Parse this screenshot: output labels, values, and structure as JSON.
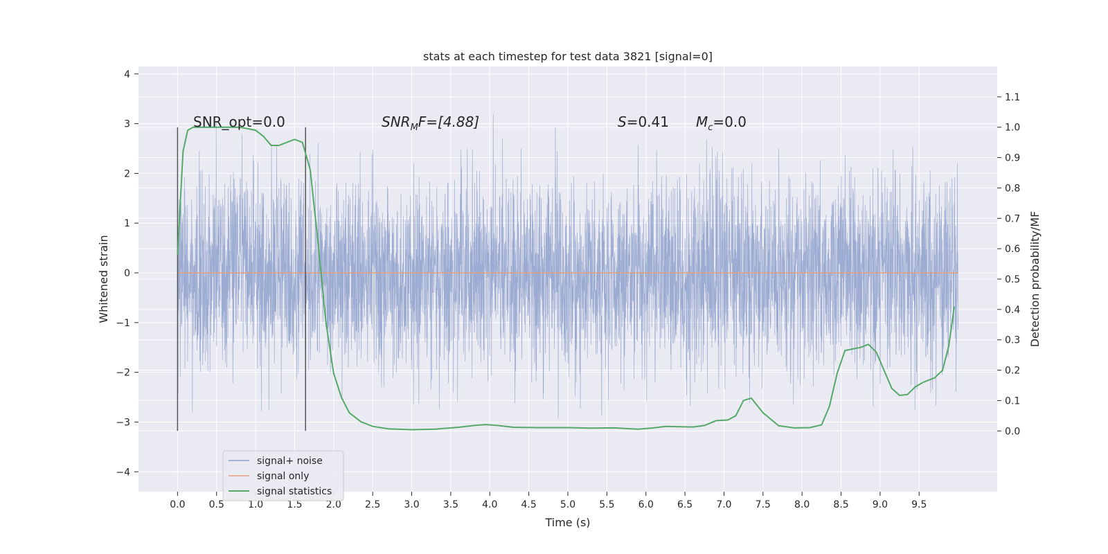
{
  "chart_data": {
    "type": "line",
    "title": "stats at each timestep for test data 3821 [signal=0]",
    "xlabel": "Time (s)",
    "ylabel": "Whitened strain",
    "y2label": "Detection probability/MF",
    "xlim": [
      -0.5,
      10.5
    ],
    "ylim": [
      -4.4,
      4.15
    ],
    "y2lim": [
      -0.2,
      1.2
    ],
    "x_ticks": [
      "0.0",
      "0.5",
      "1.0",
      "1.5",
      "2.0",
      "2.5",
      "3.0",
      "3.5",
      "4.0",
      "4.5",
      "5.0",
      "5.5",
      "6.0",
      "6.5",
      "7.0",
      "7.5",
      "8.0",
      "8.5",
      "9.0",
      "9.5"
    ],
    "y_ticks": [
      "4",
      "3",
      "2",
      "1",
      "0",
      "−1",
      "−2",
      "−3",
      "−4"
    ],
    "y2_ticks": [
      "1.1",
      "1.0",
      "0.9",
      "0.8",
      "0.7",
      "0.6",
      "0.5",
      "0.4",
      "0.3",
      "0.2",
      "0.1",
      "0.0"
    ],
    "grid": true,
    "legend_position": "lower-left",
    "colors": {
      "noise": "#8da0cb",
      "signal": "#e5a07e",
      "stats": "#55a868",
      "background": "#eaeaf2",
      "vline": "#555555"
    },
    "annotations": {
      "snr_opt": "SNR_opt=0.0",
      "snr_mf_prefix": "SNR",
      "snr_mf_sub": "M",
      "snr_mf_suffix": "F=[4.88]",
      "s_var": "S",
      "s_value": "=0.41",
      "mc_var": "M",
      "mc_sub": "c",
      "mc_value": "=0.0"
    },
    "vertical_markers_x": [
      0.0,
      1.64
    ],
    "series": [
      {
        "name": "signal+ noise",
        "x_range": [
          0.0,
          10.0
        ],
        "approx_envelope": [
          -3.3,
          3.8
        ],
        "note_values": "dense noise series ~N(0,1), 4096 samples"
      },
      {
        "name": "signal only",
        "x": [
          0.0,
          10.0
        ],
        "y": [
          0.0,
          0.0
        ]
      },
      {
        "name": "signal statistics",
        "axis": "right",
        "x": [
          0.0,
          0.07,
          0.13,
          0.2,
          0.3,
          0.5,
          0.8,
          1.0,
          1.1,
          1.2,
          1.3,
          1.4,
          1.5,
          1.6,
          1.7,
          1.8,
          1.9,
          2.0,
          2.1,
          2.2,
          2.35,
          2.5,
          2.7,
          3.0,
          3.3,
          3.6,
          3.8,
          3.95,
          4.1,
          4.3,
          4.6,
          5.0,
          5.3,
          5.6,
          5.9,
          6.1,
          6.25,
          6.4,
          6.6,
          6.75,
          6.9,
          7.05,
          7.15,
          7.25,
          7.35,
          7.5,
          7.7,
          7.9,
          8.1,
          8.25,
          8.35,
          8.45,
          8.55,
          8.65,
          8.75,
          8.85,
          8.95,
          9.05,
          9.15,
          9.25,
          9.35,
          9.45,
          9.55,
          9.7,
          9.8,
          9.88,
          9.95
        ],
        "y": [
          0.58,
          0.92,
          0.99,
          1.0,
          1.0,
          1.0,
          1.0,
          0.99,
          0.97,
          0.94,
          0.94,
          0.95,
          0.96,
          0.95,
          0.86,
          0.62,
          0.36,
          0.19,
          0.11,
          0.06,
          0.03,
          0.015,
          0.007,
          0.004,
          0.006,
          0.012,
          0.018,
          0.021,
          0.018,
          0.012,
          0.011,
          0.011,
          0.009,
          0.01,
          0.006,
          0.01,
          0.015,
          0.014,
          0.013,
          0.018,
          0.034,
          0.036,
          0.05,
          0.1,
          0.108,
          0.06,
          0.017,
          0.01,
          0.011,
          0.02,
          0.08,
          0.19,
          0.265,
          0.27,
          0.275,
          0.285,
          0.26,
          0.2,
          0.14,
          0.117,
          0.12,
          0.145,
          0.16,
          0.175,
          0.2,
          0.28,
          0.41
        ]
      }
    ]
  }
}
